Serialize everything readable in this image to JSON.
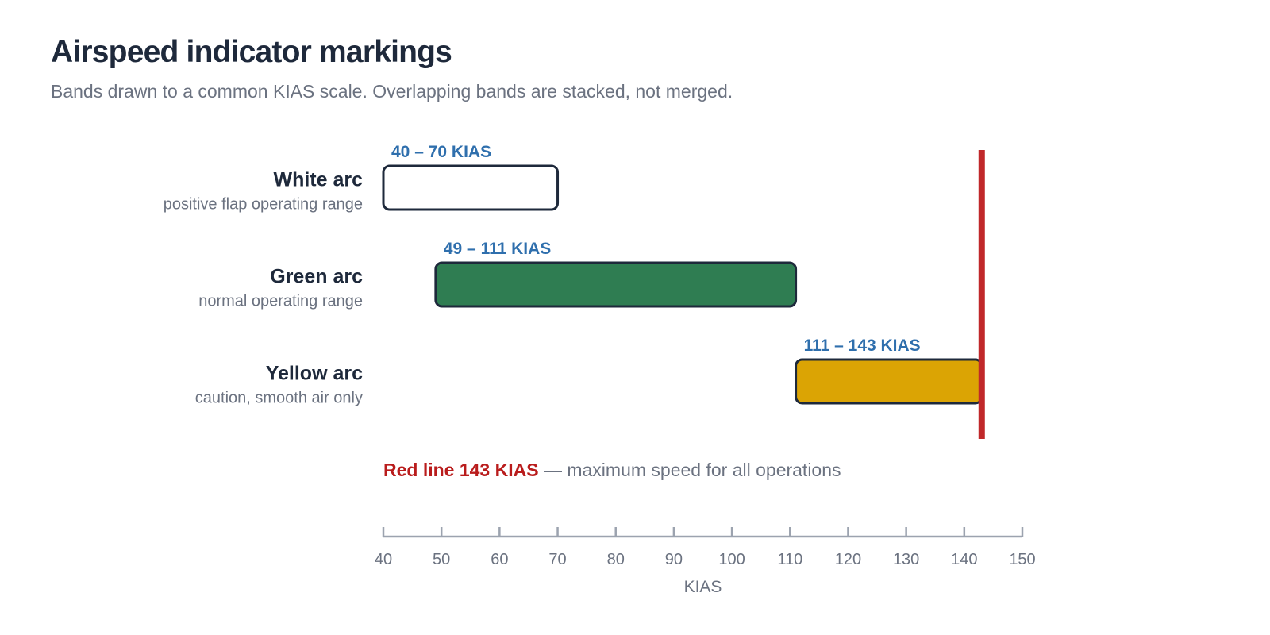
{
  "title": "Airspeed indicator markings",
  "subtitle": "Bands drawn to a common KIAS scale. Overlapping bands are stacked, not merged.",
  "chart_data": {
    "type": "bar",
    "orientation": "horizontal",
    "bar_kind": "range",
    "xlabel": "KIAS",
    "xlim": [
      40,
      150
    ],
    "x_ticks": [
      40,
      50,
      60,
      70,
      80,
      90,
      100,
      110,
      120,
      130,
      140,
      150
    ],
    "grid": false,
    "bands": [
      {
        "name": "White arc",
        "description": "positive flap operating range",
        "start": 40,
        "end": 70,
        "range_label": "40 – 70 KIAS",
        "color": "#ffffff"
      },
      {
        "name": "Green arc",
        "description": "normal operating range",
        "start": 49,
        "end": 111,
        "range_label": "49 – 111 KIAS",
        "color": "#2f7d52"
      },
      {
        "name": "Yellow arc",
        "description": "caution, smooth air only",
        "start": 111,
        "end": 143,
        "range_label": "111 – 143 KIAS",
        "color": "#dba404"
      }
    ],
    "red_line": {
      "value": 143,
      "label": "Red line 143 KIAS",
      "note": " — maximum speed for all operations",
      "color": "#c0282a"
    },
    "colors": {
      "band_outline": "#1e293b",
      "range_label": "#2f6fad",
      "axis": "#9ca3af"
    }
  }
}
